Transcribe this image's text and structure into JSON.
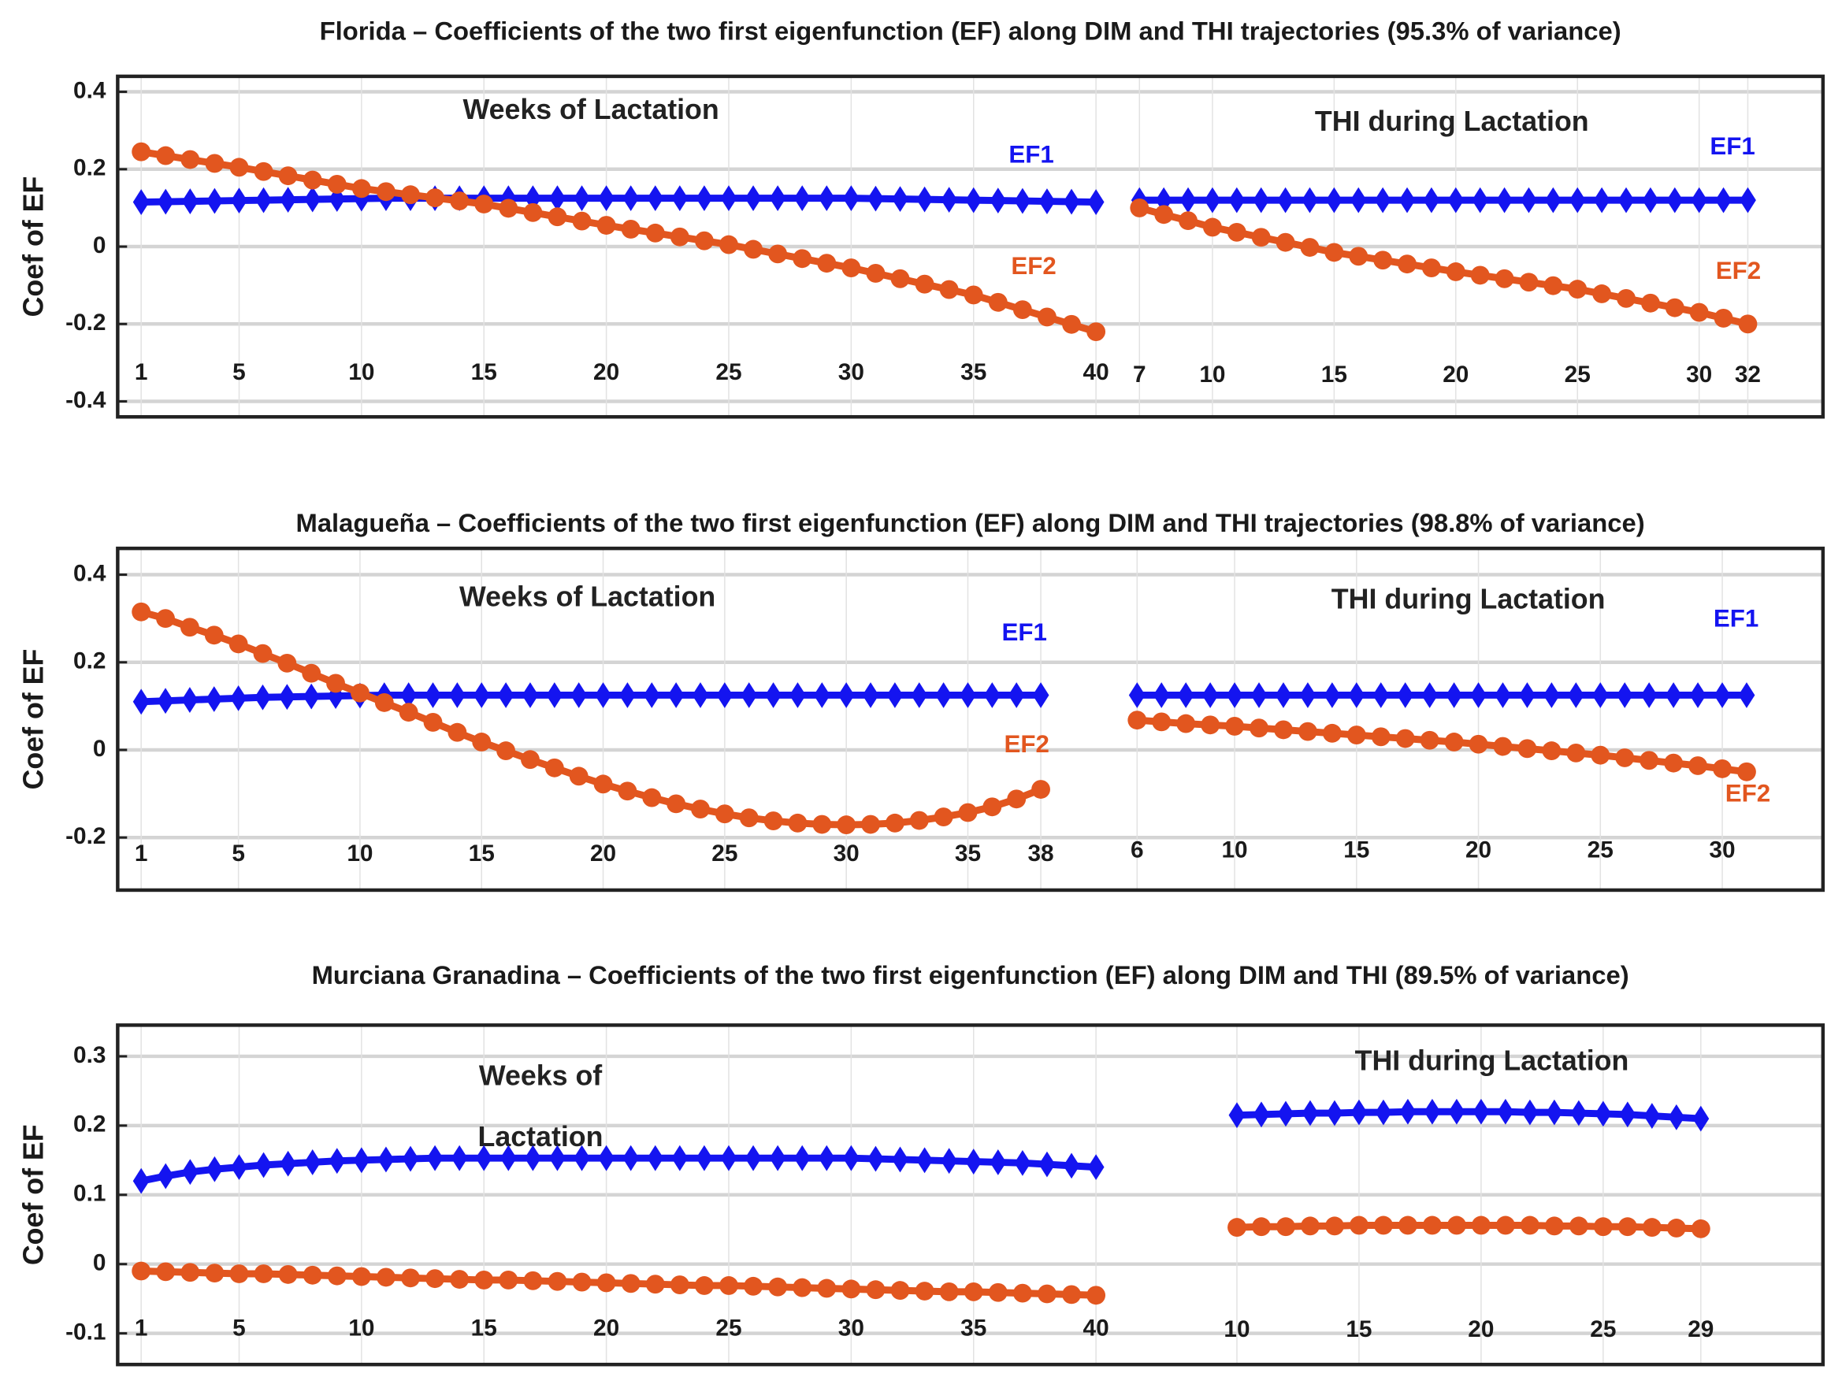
{
  "chart_data": [
    {
      "type": "line",
      "title": "Florida – Coefficients of the two first eigenfunction (EF) along DIM and THI trajectories (95.3% of variance)",
      "ylabel": "Coef of EF",
      "ylim": [
        -0.44,
        0.44
      ],
      "yticks": [
        0.4,
        0.2,
        0,
        -0.2,
        -0.4
      ],
      "grid": true,
      "segments": [
        {
          "label": "Weeks of Lactation",
          "xlim": [
            1,
            40
          ],
          "xticks": [
            1,
            5,
            10,
            15,
            20,
            25,
            30,
            35,
            40
          ],
          "x": [
            1,
            2,
            3,
            4,
            5,
            6,
            7,
            8,
            9,
            10,
            11,
            12,
            13,
            14,
            15,
            16,
            17,
            18,
            19,
            20,
            21,
            22,
            23,
            24,
            25,
            26,
            27,
            28,
            29,
            30,
            31,
            32,
            33,
            34,
            35,
            36,
            37,
            38,
            39,
            40
          ],
          "series": [
            {
              "name": "EF1",
              "color": "#1414f0",
              "marker": "diamond",
              "values": [
                0.115,
                0.116,
                0.117,
                0.118,
                0.119,
                0.12,
                0.121,
                0.122,
                0.123,
                0.124,
                0.125,
                0.125,
                0.125,
                0.125,
                0.125,
                0.125,
                0.125,
                0.125,
                0.125,
                0.125,
                0.125,
                0.125,
                0.125,
                0.125,
                0.125,
                0.125,
                0.125,
                0.125,
                0.125,
                0.125,
                0.124,
                0.123,
                0.122,
                0.121,
                0.12,
                0.119,
                0.118,
                0.117,
                0.116,
                0.115
              ]
            },
            {
              "name": "EF2",
              "color": "#e2561f",
              "marker": "circle",
              "values": [
                0.245,
                0.235,
                0.225,
                0.215,
                0.205,
                0.194,
                0.183,
                0.172,
                0.161,
                0.15,
                0.142,
                0.134,
                0.126,
                0.118,
                0.11,
                0.099,
                0.088,
                0.077,
                0.066,
                0.055,
                0.045,
                0.035,
                0.025,
                0.015,
                0.005,
                -0.007,
                -0.019,
                -0.031,
                -0.043,
                -0.055,
                -0.069,
                -0.083,
                -0.097,
                -0.111,
                -0.125,
                -0.144,
                -0.163,
                -0.182,
                -0.201,
                -0.22
              ]
            }
          ]
        },
        {
          "label": "THI during Lactation",
          "xlim": [
            7,
            32
          ],
          "xticks": [
            7,
            10,
            15,
            20,
            25,
            30,
            32
          ],
          "x": [
            7,
            8,
            9,
            10,
            11,
            12,
            13,
            14,
            15,
            16,
            17,
            18,
            19,
            20,
            21,
            22,
            23,
            24,
            25,
            26,
            27,
            28,
            29,
            30,
            31,
            32
          ],
          "series": [
            {
              "name": "EF1",
              "color": "#1414f0",
              "marker": "diamond",
              "values": [
                0.12,
                0.12,
                0.12,
                0.12,
                0.12,
                0.12,
                0.12,
                0.12,
                0.12,
                0.12,
                0.12,
                0.12,
                0.12,
                0.12,
                0.12,
                0.12,
                0.12,
                0.12,
                0.12,
                0.12,
                0.12,
                0.12,
                0.12,
                0.12,
                0.12,
                0.12
              ]
            },
            {
              "name": "EF2",
              "color": "#e2561f",
              "marker": "circle",
              "values": [
                0.1,
                0.083,
                0.067,
                0.05,
                0.037,
                0.024,
                0.011,
                -0.002,
                -0.015,
                -0.025,
                -0.035,
                -0.045,
                -0.055,
                -0.065,
                -0.074,
                -0.083,
                -0.092,
                -0.101,
                -0.11,
                -0.122,
                -0.134,
                -0.146,
                -0.158,
                -0.17,
                -0.185,
                -0.2
              ]
            }
          ]
        }
      ]
    },
    {
      "type": "line",
      "title": "Malagueña – Coefficients of the two first eigenfunction (EF) along DIM and THI trajectories (98.8% of variance)",
      "ylabel": "Coef of EF",
      "ylim": [
        -0.32,
        0.46
      ],
      "yticks": [
        0.4,
        0.2,
        0,
        -0.2
      ],
      "grid": true,
      "segments": [
        {
          "label": "Weeks of Lactation",
          "xlim": [
            1,
            38
          ],
          "xticks": [
            1,
            5,
            10,
            15,
            20,
            25,
            30,
            35,
            38
          ],
          "x": [
            1,
            2,
            3,
            4,
            5,
            6,
            7,
            8,
            9,
            10,
            11,
            12,
            13,
            14,
            15,
            16,
            17,
            18,
            19,
            20,
            21,
            22,
            23,
            24,
            25,
            26,
            27,
            28,
            29,
            30,
            31,
            32,
            33,
            34,
            35,
            36,
            37,
            38
          ],
          "series": [
            {
              "name": "EF1",
              "color": "#1414f0",
              "marker": "diamond",
              "values": [
                0.11,
                0.112,
                0.114,
                0.116,
                0.118,
                0.12,
                0.121,
                0.122,
                0.123,
                0.124,
                0.125,
                0.125,
                0.125,
                0.125,
                0.125,
                0.125,
                0.125,
                0.125,
                0.125,
                0.125,
                0.125,
                0.125,
                0.125,
                0.125,
                0.125,
                0.125,
                0.125,
                0.125,
                0.125,
                0.125,
                0.125,
                0.125,
                0.125,
                0.125,
                0.125,
                0.125,
                0.125,
                0.125
              ]
            },
            {
              "name": "EF2",
              "color": "#e2561f",
              "marker": "circle",
              "values": [
                0.315,
                0.3,
                0.28,
                0.262,
                0.242,
                0.22,
                0.198,
                0.175,
                0.152,
                0.13,
                0.108,
                0.086,
                0.063,
                0.04,
                0.018,
                -0.002,
                -0.022,
                -0.041,
                -0.06,
                -0.078,
                -0.094,
                -0.109,
                -0.123,
                -0.135,
                -0.146,
                -0.155,
                -0.162,
                -0.167,
                -0.17,
                -0.171,
                -0.17,
                -0.167,
                -0.161,
                -0.153,
                -0.143,
                -0.13,
                -0.112,
                -0.09
              ]
            }
          ]
        },
        {
          "label": "THI during Lactation",
          "xlim": [
            6,
            31
          ],
          "xticks": [
            6,
            10,
            15,
            20,
            25,
            30
          ],
          "x": [
            6,
            7,
            8,
            9,
            10,
            11,
            12,
            13,
            14,
            15,
            16,
            17,
            18,
            19,
            20,
            21,
            22,
            23,
            24,
            25,
            26,
            27,
            28,
            29,
            30,
            31
          ],
          "series": [
            {
              "name": "EF1",
              "color": "#1414f0",
              "marker": "diamond",
              "values": [
                0.125,
                0.125,
                0.125,
                0.125,
                0.125,
                0.125,
                0.125,
                0.125,
                0.125,
                0.125,
                0.125,
                0.125,
                0.125,
                0.125,
                0.125,
                0.125,
                0.125,
                0.125,
                0.125,
                0.125,
                0.125,
                0.125,
                0.125,
                0.125,
                0.125,
                0.125
              ]
            },
            {
              "name": "EF2",
              "color": "#e2561f",
              "marker": "circle",
              "values": [
                0.068,
                0.064,
                0.06,
                0.057,
                0.054,
                0.05,
                0.046,
                0.042,
                0.038,
                0.034,
                0.03,
                0.026,
                0.022,
                0.018,
                0.013,
                0.008,
                0.003,
                -0.002,
                -0.007,
                -0.012,
                -0.018,
                -0.024,
                -0.03,
                -0.036,
                -0.043,
                -0.05
              ]
            }
          ]
        }
      ]
    },
    {
      "type": "line",
      "title": "Murciana Granadina – Coefficients of the two first eigenfunction (EF) along DIM and THI (89.5% of variance)",
      "ylabel": "Coef of EF",
      "ylim": [
        -0.145,
        0.345
      ],
      "yticks": [
        0.3,
        0.2,
        0.1,
        0,
        -0.1
      ],
      "grid": true,
      "segments": [
        {
          "label": "Weeks of Lactation",
          "xlim": [
            1,
            40
          ],
          "xticks": [
            1,
            5,
            10,
            15,
            20,
            25,
            30,
            35,
            40
          ],
          "x": [
            1,
            2,
            3,
            4,
            5,
            6,
            7,
            8,
            9,
            10,
            11,
            12,
            13,
            14,
            15,
            16,
            17,
            18,
            19,
            20,
            21,
            22,
            23,
            24,
            25,
            26,
            27,
            28,
            29,
            30,
            31,
            32,
            33,
            34,
            35,
            36,
            37,
            38,
            39,
            40
          ],
          "series": [
            {
              "color": "#1414f0",
              "marker": "diamond",
              "values": [
                0.12,
                0.127,
                0.133,
                0.137,
                0.14,
                0.143,
                0.145,
                0.147,
                0.149,
                0.15,
                0.151,
                0.152,
                0.153,
                0.153,
                0.153,
                0.153,
                0.153,
                0.153,
                0.153,
                0.153,
                0.153,
                0.153,
                0.153,
                0.153,
                0.153,
                0.153,
                0.153,
                0.153,
                0.153,
                0.153,
                0.152,
                0.151,
                0.15,
                0.149,
                0.148,
                0.147,
                0.146,
                0.144,
                0.142,
                0.14
              ]
            },
            {
              "color": "#e2561f",
              "marker": "circle",
              "values": [
                -0.01,
                -0.011,
                -0.012,
                -0.013,
                -0.014,
                -0.014,
                -0.015,
                -0.016,
                -0.017,
                -0.018,
                -0.019,
                -0.02,
                -0.021,
                -0.022,
                -0.023,
                -0.023,
                -0.024,
                -0.025,
                -0.026,
                -0.027,
                -0.028,
                -0.029,
                -0.03,
                -0.031,
                -0.031,
                -0.032,
                -0.033,
                -0.034,
                -0.035,
                -0.036,
                -0.037,
                -0.038,
                -0.039,
                -0.04,
                -0.04,
                -0.041,
                -0.042,
                -0.043,
                -0.044,
                -0.045
              ]
            }
          ]
        },
        {
          "label": "THI during Lactation",
          "xlim": [
            10,
            29
          ],
          "xticks": [
            10,
            15,
            20,
            25,
            29
          ],
          "x": [
            10,
            11,
            12,
            13,
            14,
            15,
            16,
            17,
            18,
            19,
            20,
            21,
            22,
            23,
            24,
            25,
            26,
            27,
            28,
            29
          ],
          "series": [
            {
              "color": "#1414f0",
              "marker": "diamond",
              "values": [
                0.215,
                0.216,
                0.217,
                0.218,
                0.218,
                0.219,
                0.219,
                0.22,
                0.22,
                0.22,
                0.22,
                0.22,
                0.219,
                0.219,
                0.218,
                0.217,
                0.216,
                0.214,
                0.212,
                0.21
              ]
            },
            {
              "color": "#e2561f",
              "marker": "circle",
              "values": [
                0.053,
                0.054,
                0.054,
                0.055,
                0.055,
                0.056,
                0.056,
                0.056,
                0.056,
                0.056,
                0.056,
                0.056,
                0.056,
                0.055,
                0.055,
                0.054,
                0.054,
                0.053,
                0.052,
                0.051
              ]
            }
          ]
        }
      ]
    }
  ]
}
